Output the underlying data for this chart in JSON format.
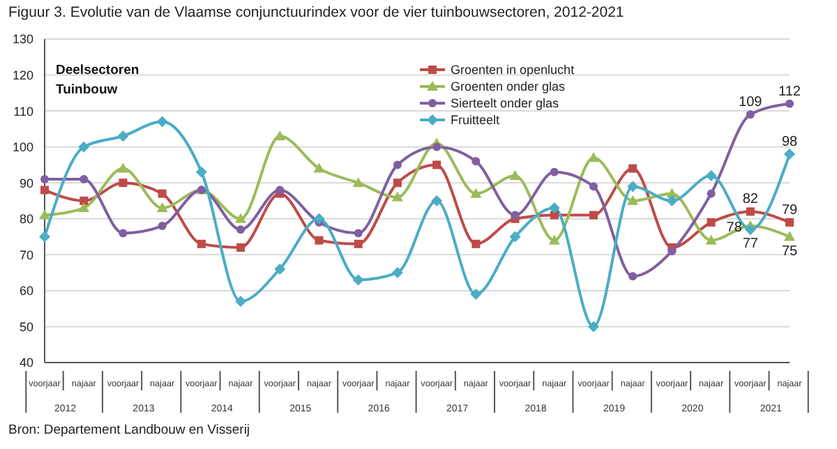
{
  "chart_data": {
    "type": "line",
    "title": "Figuur 3. Evolutie van de Vlaamse conjunctuurindex voor de vier tuinbouwsectoren, 2012-2021",
    "legend_title": "Deelsectoren Tuinbouw",
    "categories": [
      "voorjaar",
      "najaar",
      "voorjaar",
      "najaar",
      "voorjaar",
      "najaar",
      "voorjaar",
      "najaar",
      "voorjaar",
      "najaar",
      "voorjaar",
      "najaar",
      "voorjaar",
      "najaar",
      "voorjaar",
      "najaar",
      "voorjaar",
      "najaar",
      "voorjaar",
      "najaar"
    ],
    "series": [
      {
        "name": "Groenten in openlucht",
        "color": "#be4b48",
        "marker": "square",
        "values": [
          88,
          85,
          90,
          87,
          73,
          72,
          87,
          74,
          73,
          90,
          95,
          73,
          80,
          81,
          81,
          94,
          72,
          79,
          82,
          79
        ],
        "value_labels": [
          null,
          null,
          null,
          null,
          null,
          null,
          null,
          null,
          null,
          null,
          null,
          null,
          null,
          null,
          null,
          null,
          null,
          null,
          "82",
          "79"
        ]
      },
      {
        "name": "Groenten onder glas",
        "color": "#9bbb59",
        "marker": "triangle",
        "values": [
          81,
          83,
          94,
          83,
          88,
          80,
          103,
          94,
          90,
          86,
          101,
          87,
          92,
          74,
          97,
          85,
          87,
          74,
          78,
          75
        ],
        "value_labels": [
          null,
          null,
          null,
          null,
          null,
          null,
          null,
          null,
          null,
          null,
          null,
          null,
          null,
          null,
          null,
          null,
          null,
          null,
          "78",
          "75"
        ]
      },
      {
        "name": "Sierteelt onder glas",
        "color": "#7f5fa0",
        "marker": "circle",
        "values": [
          91,
          91,
          76,
          78,
          88,
          77,
          88,
          79,
          76,
          95,
          100,
          96,
          81,
          93,
          89,
          64,
          71,
          87,
          109,
          112
        ],
        "value_labels": [
          null,
          null,
          null,
          null,
          null,
          null,
          null,
          null,
          null,
          null,
          null,
          null,
          null,
          null,
          null,
          null,
          null,
          null,
          "109",
          "112"
        ]
      },
      {
        "name": "Fruitteelt",
        "color": "#4bacc6",
        "marker": "diamond",
        "values": [
          75,
          100,
          103,
          107,
          93,
          57,
          66,
          80,
          63,
          65,
          85,
          59,
          75,
          83,
          50,
          89,
          85,
          92,
          77,
          98
        ],
        "value_labels": [
          null,
          null,
          null,
          null,
          null,
          null,
          null,
          null,
          null,
          null,
          null,
          null,
          null,
          null,
          null,
          null,
          null,
          null,
          "77",
          "98"
        ]
      }
    ],
    "ylim": [
      40,
      130
    ],
    "yticks": [
      40,
      50,
      60,
      70,
      80,
      90,
      100,
      110,
      120,
      130
    ],
    "grid": "y",
    "legend": "top right",
    "annotations": [
      "2012",
      "2013",
      "2014",
      "2015",
      "2016",
      "2017",
      "2018",
      "2019",
      "2020",
      "2021",
      "Bron: Departement Landbouw en Visserij"
    ]
  }
}
